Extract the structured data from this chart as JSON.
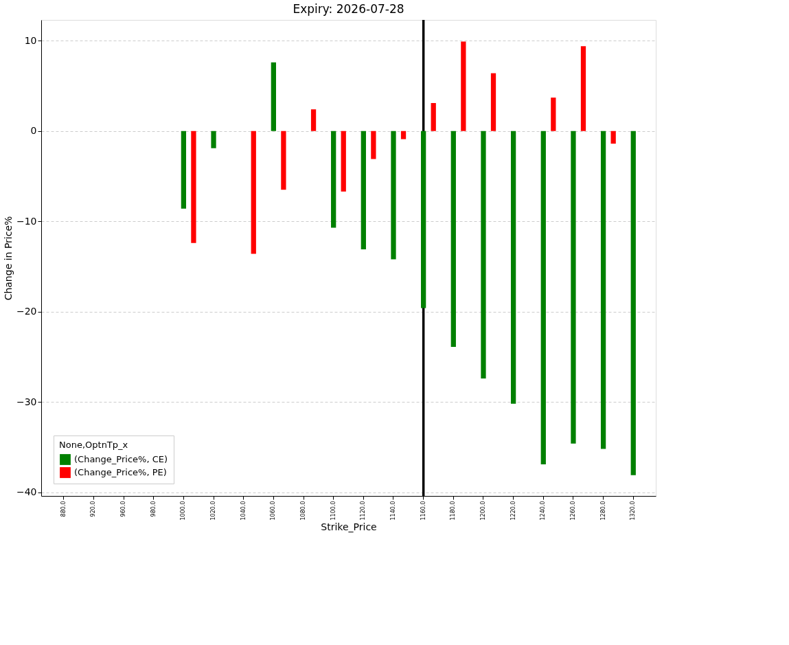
{
  "chart_data": {
    "type": "bar",
    "title": "Expiry: 2026-07-28",
    "xlabel": "Strike_Price",
    "ylabel": "Change in Price%",
    "legend_title": "None,OptnTp_x",
    "categories": [
      "880.0",
      "920.0",
      "960.0",
      "980.0",
      "1000.0",
      "1020.0",
      "1040.0",
      "1060.0",
      "1080.0",
      "1100.0",
      "1120.0",
      "1140.0",
      "1160.0",
      "1180.0",
      "1200.0",
      "1220.0",
      "1240.0",
      "1260.0",
      "1280.0",
      "1320.0"
    ],
    "series": [
      {
        "name": "(Change_Price%, CE)",
        "color": "#008000",
        "values": [
          null,
          null,
          null,
          null,
          -8.6,
          -1.9,
          null,
          7.6,
          null,
          -10.7,
          -13.1,
          -14.2,
          -19.6,
          -23.9,
          -27.4,
          -30.2,
          -36.9,
          -34.6,
          -35.2,
          -38.1
        ]
      },
      {
        "name": "(Change_Price%, PE)",
        "color": "#ff0000",
        "values": [
          null,
          null,
          null,
          null,
          -12.4,
          null,
          -13.6,
          -6.5,
          2.4,
          -6.7,
          -3.1,
          -0.9,
          3.1,
          9.9,
          6.4,
          null,
          3.7,
          9.4,
          -1.4,
          null
        ]
      }
    ],
    "ylim": [
      -40.4,
      12.3
    ],
    "yticks": [
      -40,
      -30,
      -20,
      -10,
      0,
      10
    ],
    "grid": "y",
    "legend": "bottom left",
    "ref_lines": [
      {
        "axis": "x",
        "value": "1160.0",
        "color": "#000000",
        "line_style": "solid"
      }
    ]
  }
}
